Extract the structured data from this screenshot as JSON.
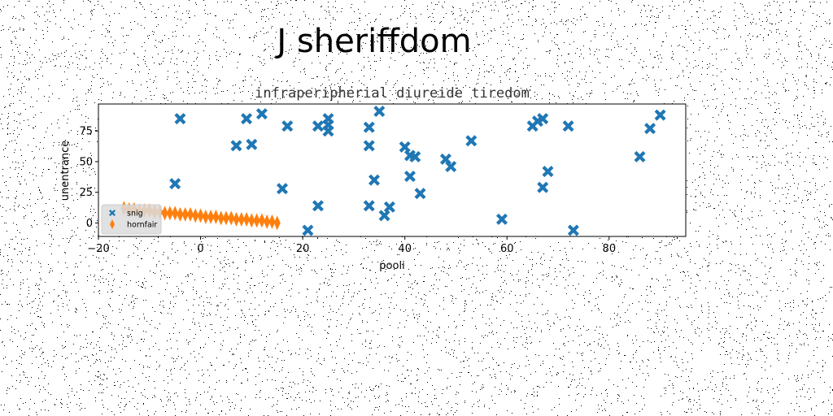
{
  "figure_title": "J sheriffdom",
  "chart_data": {
    "type": "scatter",
    "title": "infraperipherial diureide tiredom",
    "xlabel": "pooli",
    "ylabel": "unentrance",
    "xlim": [
      -20,
      95
    ],
    "ylim": [
      -11,
      97
    ],
    "xticks": [
      -20,
      0,
      20,
      40,
      60,
      80
    ],
    "yticks": [
      0,
      25,
      50,
      75
    ],
    "grid": false,
    "legend_position": "lower-left",
    "series": [
      {
        "name": "snig",
        "marker": "X",
        "color": "#1f77b4",
        "points": [
          [
            -5,
            32
          ],
          [
            -4,
            85
          ],
          [
            7,
            63
          ],
          [
            9,
            85
          ],
          [
            10,
            64
          ],
          [
            12,
            89
          ],
          [
            17,
            79
          ],
          [
            16,
            28
          ],
          [
            21,
            -6
          ],
          [
            23,
            79
          ],
          [
            23,
            14
          ],
          [
            25,
            80
          ],
          [
            25,
            85
          ],
          [
            25,
            75
          ],
          [
            33,
            78
          ],
          [
            33,
            63
          ],
          [
            33,
            14
          ],
          [
            34,
            35
          ],
          [
            35,
            91
          ],
          [
            36,
            6
          ],
          [
            37,
            13
          ],
          [
            40,
            62
          ],
          [
            41,
            55
          ],
          [
            41,
            38
          ],
          [
            42,
            54
          ],
          [
            43,
            24
          ],
          [
            48,
            52
          ],
          [
            49,
            46
          ],
          [
            53,
            67
          ],
          [
            59,
            3
          ],
          [
            65,
            79
          ],
          [
            66,
            83
          ],
          [
            67,
            85
          ],
          [
            67,
            29
          ],
          [
            68,
            42
          ],
          [
            72,
            79
          ],
          [
            73,
            -6
          ],
          [
            86,
            54
          ],
          [
            88,
            77
          ],
          [
            90,
            88
          ]
        ]
      },
      {
        "name": "hornfair",
        "marker": "thin_diamond",
        "color": "#ff7f0e",
        "points": [
          [
            -15,
            12
          ],
          [
            -14,
            11
          ],
          [
            -13,
            11
          ],
          [
            -12,
            10
          ],
          [
            -11,
            10
          ],
          [
            -10,
            10
          ],
          [
            -9,
            9
          ],
          [
            -8,
            9
          ],
          [
            -7,
            8
          ],
          [
            -6,
            8
          ],
          [
            -5,
            8
          ],
          [
            -4,
            7
          ],
          [
            -3,
            7
          ],
          [
            -2,
            7
          ],
          [
            -1,
            6
          ],
          [
            0,
            6
          ],
          [
            1,
            5
          ],
          [
            2,
            5
          ],
          [
            3,
            5
          ],
          [
            4,
            4
          ],
          [
            5,
            4
          ],
          [
            6,
            4
          ],
          [
            7,
            3
          ],
          [
            8,
            3
          ],
          [
            9,
            3
          ],
          [
            10,
            2
          ],
          [
            11,
            2
          ],
          [
            12,
            2
          ],
          [
            13,
            1
          ],
          [
            14,
            1
          ],
          [
            15,
            0
          ]
        ]
      }
    ]
  }
}
